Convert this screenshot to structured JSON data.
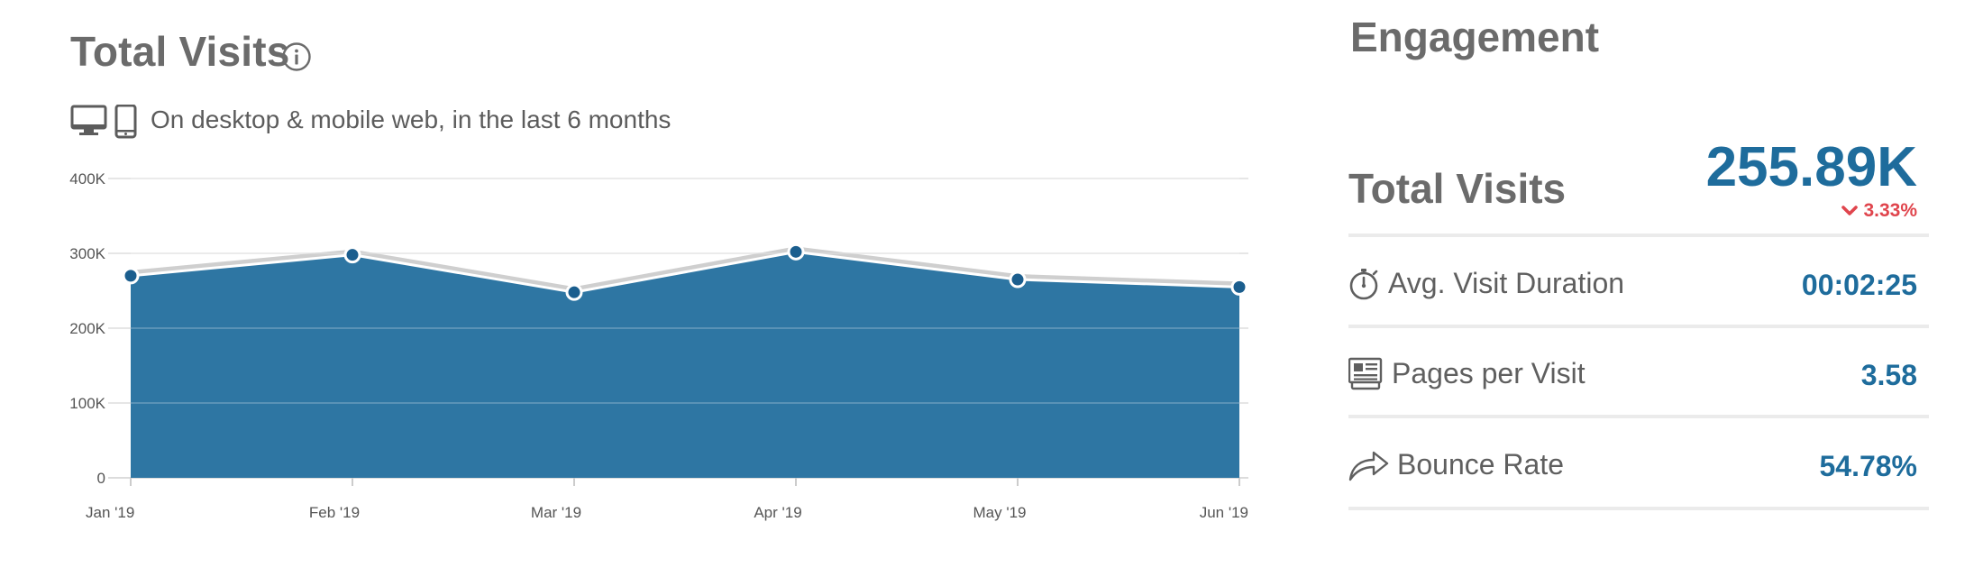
{
  "visits_panel": {
    "title": "Total Visits",
    "subtitle": "On desktop & mobile web, in the last 6 months",
    "icons": [
      "info-icon",
      "desktop-icon",
      "mobile-icon"
    ]
  },
  "chart_data": {
    "type": "area",
    "title": "Total Visits",
    "xlabel": "",
    "ylabel": "",
    "categories": [
      "Jan '19",
      "Feb '19",
      "Mar '19",
      "Apr '19",
      "May '19",
      "Jun '19"
    ],
    "values": [
      270000,
      298000,
      248000,
      302000,
      265000,
      255000
    ],
    "y_ticks": [
      {
        "value": 0,
        "label": "0"
      },
      {
        "value": 100000,
        "label": "100K"
      },
      {
        "value": 200000,
        "label": "200K"
      },
      {
        "value": 300000,
        "label": "300K"
      },
      {
        "value": 400000,
        "label": "400K"
      }
    ],
    "ylim": [
      0,
      400000
    ],
    "grid": true,
    "legend": "none",
    "color": "#2e76a3"
  },
  "engagement": {
    "heading": "Engagement",
    "total_visits": {
      "label": "Total Visits",
      "value": "255.89K",
      "change": "3.33%",
      "change_direction": "down",
      "change_color": "#e0454d"
    },
    "metrics": [
      {
        "label": "Avg. Visit Duration",
        "value": "00:02:25",
        "icon": "stopwatch-icon"
      },
      {
        "label": "Pages per Visit",
        "value": "3.58",
        "icon": "pages-icon"
      },
      {
        "label": "Bounce Rate",
        "value": "54.78%",
        "icon": "share-arrow-icon"
      }
    ],
    "accent_color": "#1e6c9c"
  }
}
